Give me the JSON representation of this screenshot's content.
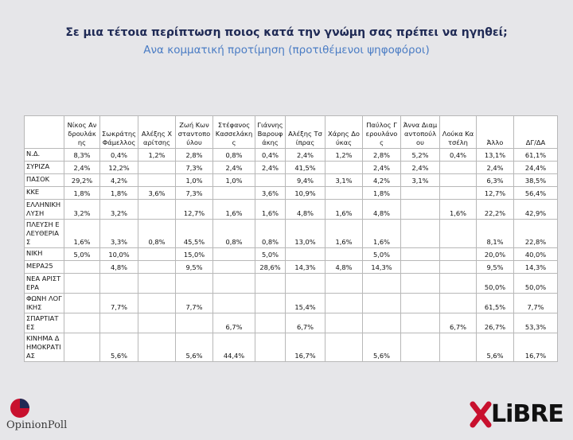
{
  "header": {
    "title": "Σε μια τέτοια περίπτωση ποιος κατά την γνώμη σας πρέπει να ηγηθεί;",
    "subtitle": "Ανα κομματική προτίμηση (προτιθέμενοι ψηφοφόροι)"
  },
  "table": {
    "columns": [
      "Νίκος Ανδρουλάκης",
      "Σωκράτης Φάμελλος",
      "Αλέξης Χαρίτσης",
      "Ζωή Κωνσταντοπούλου",
      "Στέφανος Κασσελάκης",
      "Γιάννης Βαρουφάκης",
      "Αλέξης Τσίπρας",
      "Χάρης Δούκας",
      "Παύλος Γερουλάνος",
      "Άννα Διαμαντοπούλου",
      "Λούκα Κατσέλη",
      "Άλλο",
      "ΔΓ/ΔΑ"
    ],
    "rows": [
      {
        "party": "Ν.Δ.",
        "cells": [
          "8,3%",
          "0,4%",
          "1,2%",
          "2,8%",
          "0,8%",
          "0,4%",
          "2,4%",
          "1,2%",
          "2,8%",
          "5,2%",
          "0,4%",
          "13,1%",
          "61,1%"
        ]
      },
      {
        "party": "ΣΥΡΙΖΑ",
        "cells": [
          "2,4%",
          "12,2%",
          null,
          "7,3%",
          "2,4%",
          "2,4%",
          "41,5%",
          null,
          "2,4%",
          "2,4%",
          null,
          "2,4%",
          "24,4%"
        ]
      },
      {
        "party": "ΠΑΣΟΚ",
        "cells": [
          "29,2%",
          "4,2%",
          null,
          "1,0%",
          "1,0%",
          null,
          "9,4%",
          "3,1%",
          "4,2%",
          "3,1%",
          null,
          "6,3%",
          "38,5%"
        ]
      },
      {
        "party": "ΚΚΕ",
        "cells": [
          "1,8%",
          "1,8%",
          "3,6%",
          "7,3%",
          null,
          "3,6%",
          "10,9%",
          null,
          "1,8%",
          null,
          null,
          "12,7%",
          "56,4%"
        ]
      },
      {
        "party": "ΕΛΛΗΝΙΚΗ ΛΥΣΗ",
        "cells": [
          "3,2%",
          "3,2%",
          null,
          "12,7%",
          "1,6%",
          "1,6%",
          "4,8%",
          "1,6%",
          "4,8%",
          null,
          "1,6%",
          "22,2%",
          "42,9%"
        ]
      },
      {
        "party": "ΠΛΕΥΣΗ ΕΛΕΥΘΕΡΙΑΣ",
        "cells": [
          "1,6%",
          "3,3%",
          "0,8%",
          "45,5%",
          "0,8%",
          "0,8%",
          "13,0%",
          "1,6%",
          "1,6%",
          null,
          null,
          "8,1%",
          "22,8%"
        ]
      },
      {
        "party": "ΝΙΚΗ",
        "cells": [
          "5,0%",
          "10,0%",
          null,
          "15,0%",
          null,
          "5,0%",
          null,
          null,
          "5,0%",
          null,
          null,
          "20,0%",
          "40,0%"
        ]
      },
      {
        "party": "ΜΕΡΑ25",
        "cells": [
          null,
          "4,8%",
          null,
          "9,5%",
          null,
          "28,6%",
          "14,3%",
          "4,8%",
          "14,3%",
          null,
          null,
          "9,5%",
          "14,3%"
        ]
      },
      {
        "party": "ΝΕΑ ΑΡΙΣΤΕΡΑ",
        "cells": [
          null,
          null,
          null,
          null,
          null,
          null,
          null,
          null,
          null,
          null,
          null,
          "50,0%",
          "50,0%"
        ]
      },
      {
        "party": "ΦΩΝΗ ΛΟΓΙΚΗΣ",
        "cells": [
          null,
          "7,7%",
          null,
          "7,7%",
          null,
          null,
          "15,4%",
          null,
          null,
          null,
          null,
          "61,5%",
          "7,7%"
        ]
      },
      {
        "party": "ΣΠΑΡΤΙΑΤΕΣ",
        "cells": [
          null,
          null,
          null,
          null,
          "6,7%",
          null,
          "6,7%",
          null,
          null,
          null,
          "6,7%",
          "26,7%",
          "53,3%"
        ]
      },
      {
        "party": "ΚΙΝΗΜΑ ΔΗΜΟΚΡΑΤΙΑΣ",
        "cells": [
          null,
          "5,6%",
          null,
          "5,6%",
          "44,4%",
          null,
          "16,7%",
          null,
          "5,6%",
          null,
          null,
          "5,6%",
          "16,7%"
        ]
      }
    ]
  },
  "footer": {
    "left_logo": "OpinionPoll",
    "right_logo": "LiBRE"
  }
}
